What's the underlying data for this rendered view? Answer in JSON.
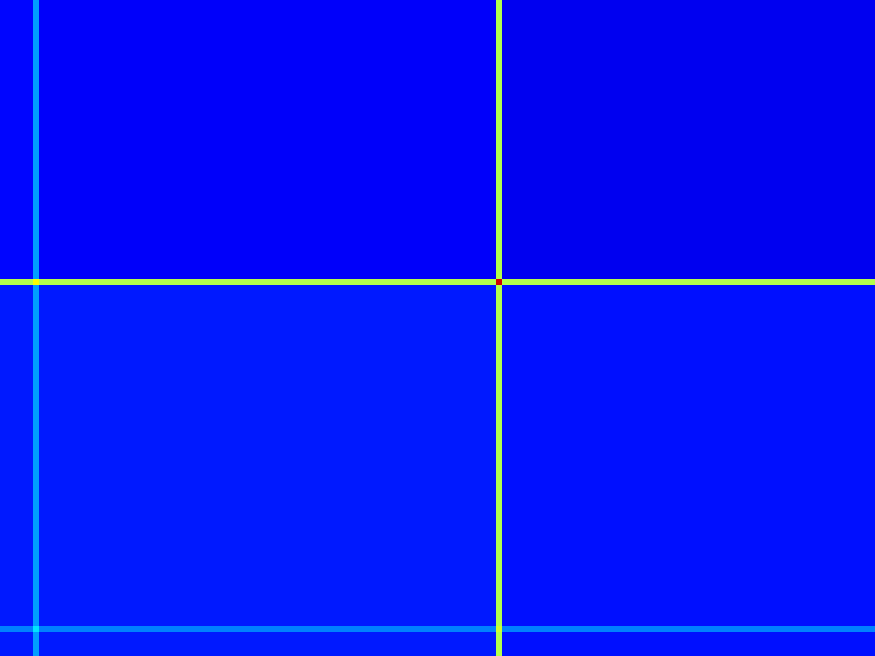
{
  "chart_data": {
    "type": "heatmap",
    "xlim": [
      0,
      875
    ],
    "ylim": [
      0,
      656
    ],
    "x_edges": [
      0,
      33,
      39,
      496,
      502,
      875
    ],
    "y_edges": [
      0,
      279,
      285,
      626,
      632,
      656
    ],
    "cells": [
      [
        0.13,
        0.28,
        0.12,
        0.55,
        0.11
      ],
      [
        0.55,
        0.62,
        0.55,
        0.92,
        0.55
      ],
      [
        0.15,
        0.28,
        0.15,
        0.55,
        0.14
      ],
      [
        0.25,
        0.35,
        0.25,
        0.58,
        0.25
      ],
      [
        0.15,
        0.28,
        0.15,
        0.55,
        0.14
      ]
    ],
    "zlim": [
      0,
      1
    ],
    "tick_labels": false
  }
}
